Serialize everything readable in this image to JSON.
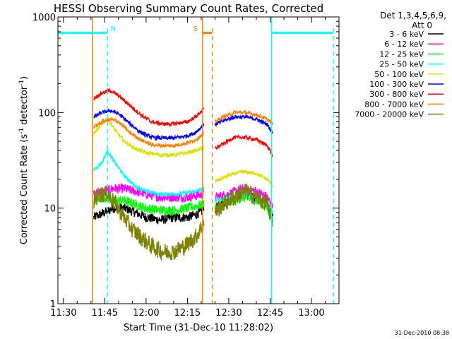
{
  "chart_data": {
    "type": "line",
    "title": "HESSI Observing Summary Count Rates, Corrected",
    "xlabel": "Start Time (31-Dec-10 11:28:02)",
    "ylabel": "Corrected Count Rate (s",
    "ylabel_sup1": "-1",
    "ylabel_mid": " detector",
    "ylabel_sup2": "-1",
    "ylabel_end": ")",
    "y_scale": "log",
    "ylim": [
      1,
      1000
    ],
    "xlim": [
      "11:28",
      "13:10"
    ],
    "x_ticks": [
      "11:30",
      "11:45",
      "12:00",
      "12:15",
      "12:30",
      "12:45",
      "13:00"
    ],
    "y_ticks": [
      "1",
      "10",
      "100",
      "1000"
    ],
    "legend_position": "right",
    "legend_header": [
      "Det 1,3,4,5,6,9,",
      "Att 0"
    ],
    "footer_date": "31-Dec-2010 08:38",
    "gaps": [
      [
        "11:28",
        "11:41"
      ],
      [
        "12:21",
        "12:25"
      ],
      [
        "12:46",
        "13:10"
      ]
    ],
    "series": [
      {
        "name": "3 - 6 keV",
        "color": "#000000",
        "x": [
          "11:41",
          "11:45",
          "11:48",
          "11:52",
          "11:56",
          "12:00",
          "12:05",
          "12:10",
          "12:15",
          "12:18",
          "12:21",
          "12:25",
          "12:30",
          "12:35",
          "12:40",
          "12:44",
          "12:46"
        ],
        "y": [
          8,
          9,
          10,
          10,
          9,
          8,
          7.5,
          8,
          8,
          8.5,
          9.5,
          10,
          12,
          14,
          13,
          11,
          8
        ]
      },
      {
        "name": "6 - 12 keV",
        "color": "#ff00ff",
        "x": [
          "11:41",
          "11:45",
          "11:48",
          "11:52",
          "11:56",
          "12:00",
          "12:05",
          "12:10",
          "12:15",
          "12:18",
          "12:21",
          "12:25",
          "12:30",
          "12:35",
          "12:40",
          "12:44",
          "12:46"
        ],
        "y": [
          14,
          15,
          16,
          16,
          15,
          14,
          13,
          13,
          13,
          13.5,
          14,
          13,
          14,
          16,
          15,
          13,
          10
        ]
      },
      {
        "name": "12 - 25 keV",
        "color": "#00ff00",
        "x": [
          "11:41",
          "11:45",
          "11:48",
          "11:52",
          "11:56",
          "12:00",
          "12:05",
          "12:10",
          "12:15",
          "12:18",
          "12:21",
          "12:25",
          "12:30",
          "12:35",
          "12:40",
          "12:44",
          "12:46"
        ],
        "y": [
          12,
          13,
          12,
          12,
          11,
          10,
          9.5,
          9.5,
          10,
          10.5,
          11,
          10,
          11,
          13,
          12,
          10,
          7
        ]
      },
      {
        "name": "25 - 50 keV",
        "color": "#00ffff",
        "x": [
          "11:41",
          "11:44",
          "11:46",
          "11:48",
          "11:52",
          "11:56",
          "12:00",
          "12:05",
          "12:10",
          "12:15",
          "12:18",
          "12:21",
          "12:25",
          "12:30",
          "12:35",
          "12:40",
          "12:44",
          "12:46"
        ],
        "y": [
          25,
          30,
          40,
          32,
          22,
          17,
          15,
          14,
          14,
          14.5,
          15,
          16,
          12,
          13,
          14,
          13,
          11,
          9
        ]
      },
      {
        "name": "50 - 100 keV",
        "color": "#e0e000",
        "x": [
          "11:41",
          "11:44",
          "11:46",
          "11:48",
          "11:52",
          "11:56",
          "12:00",
          "12:05",
          "12:10",
          "12:15",
          "12:18",
          "12:21",
          "12:25",
          "12:30",
          "12:35",
          "12:40",
          "12:44",
          "12:46"
        ],
        "y": [
          60,
          75,
          88,
          70,
          50,
          42,
          38,
          36,
          36,
          38,
          40,
          43,
          19,
          22,
          24,
          23,
          20,
          17
        ]
      },
      {
        "name": "100 - 300 keV",
        "color": "#0000ff",
        "x": [
          "11:41",
          "11:44",
          "11:47",
          "11:50",
          "11:54",
          "11:58",
          "12:02",
          "12:06",
          "12:10",
          "12:15",
          "12:18",
          "12:21",
          "12:25",
          "12:28",
          "12:32",
          "12:36",
          "12:40",
          "12:44",
          "12:46"
        ],
        "y": [
          90,
          100,
          105,
          97,
          77,
          62,
          55,
          54,
          54,
          57,
          62,
          75,
          75,
          82,
          90,
          90,
          85,
          75,
          60
        ]
      },
      {
        "name": "300 - 800 keV",
        "color": "#ff0000",
        "x": [
          "11:41",
          "11:44",
          "11:47",
          "11:50",
          "11:54",
          "11:58",
          "12:02",
          "12:06",
          "12:10",
          "12:15",
          "12:18",
          "12:21",
          "12:25",
          "12:28",
          "12:32",
          "12:36",
          "12:40",
          "12:44",
          "12:46"
        ],
        "y": [
          140,
          160,
          170,
          150,
          120,
          95,
          80,
          76,
          76,
          80,
          90,
          110,
          42,
          47,
          55,
          55,
          52,
          45,
          35
        ]
      },
      {
        "name": "800 - 7000 keV",
        "color": "#ff8000",
        "x": [
          "11:41",
          "11:44",
          "11:47",
          "11:50",
          "11:54",
          "11:58",
          "12:02",
          "12:06",
          "12:10",
          "12:15",
          "12:18",
          "12:21",
          "12:25",
          "12:28",
          "12:32",
          "12:36",
          "12:40",
          "12:44",
          "12:46"
        ],
        "y": [
          70,
          80,
          85,
          80,
          62,
          52,
          46,
          45,
          45,
          48,
          52,
          60,
          80,
          90,
          100,
          100,
          95,
          85,
          75
        ]
      },
      {
        "name": "7000 - 20000 keV",
        "color": "#808000",
        "x": [
          "11:41",
          "11:43",
          "11:46",
          "11:49",
          "11:52",
          "11:55",
          "11:58",
          "12:02",
          "12:06",
          "12:10",
          "12:14",
          "12:18",
          "12:21",
          "12:25",
          "12:28",
          "12:32",
          "12:36",
          "12:40",
          "12:44",
          "12:46"
        ],
        "y": [
          12,
          14,
          14,
          11,
          8,
          6,
          5,
          4,
          3.5,
          3.5,
          4,
          5,
          7,
          9,
          11,
          13,
          15,
          13,
          11,
          7
        ]
      }
    ],
    "solid_vlines": [
      {
        "x": "11:40.5",
        "color": "#ff8000",
        "y": [
          1,
          1000
        ]
      },
      {
        "x": "12:20.5",
        "color": "#ff8000",
        "y": [
          1,
          1000
        ]
      },
      {
        "x": "12:45.5",
        "color": "#00ffff",
        "y": [
          1,
          1000
        ]
      }
    ],
    "dashed_vlines": [
      {
        "x": "11:46",
        "color": "#00ffff"
      },
      {
        "x": "12:24",
        "color": "#ff8000"
      },
      {
        "x": "13:08",
        "color": "#00ffff"
      }
    ],
    "hbars": [
      {
        "x": [
          "11:28",
          "11:46"
        ],
        "y": 680,
        "color": "#00ffff"
      },
      {
        "x": [
          "12:45.5",
          "13:08"
        ],
        "y": 680,
        "color": "#00ffff"
      },
      {
        "x": [
          "12:20.5",
          "12:24"
        ],
        "y": 680,
        "color": "#ff8000"
      }
    ],
    "markers": [
      {
        "text": "N",
        "x": "11:46",
        "color": "#00ffff"
      },
      {
        "text": "S",
        "x": "12:20.5",
        "color": "#ff8000"
      }
    ]
  }
}
